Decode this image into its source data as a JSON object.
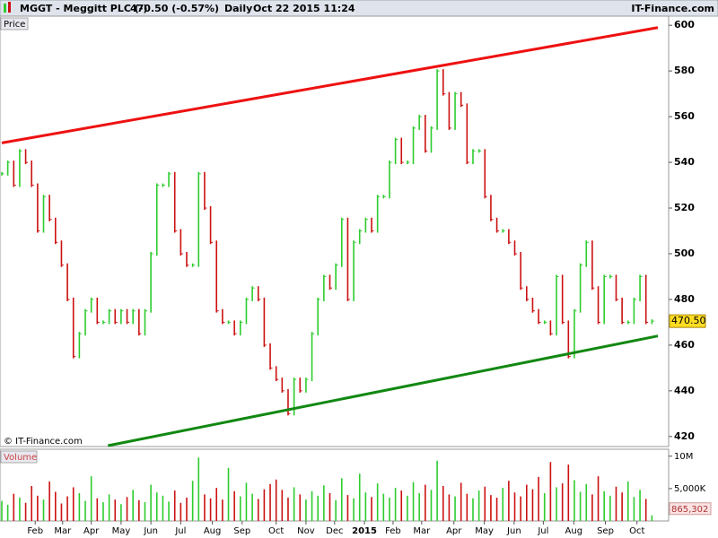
{
  "chart_data": {
    "type": "price-bars",
    "symbol": "MGGT - Meggitt PLC (-)",
    "change": "470.50 (-0.57%)",
    "period": "Daily",
    "timestamp": "Oct 22 2015 11:24",
    "brand": "IT-Finance.com",
    "watermark": "© IT-Finance.com",
    "price_pane_label": "Price",
    "volume_pane_label": "Volume",
    "up_color": "#2ecc2e",
    "down_color": "#cc1111",
    "xlim": [
      0,
      110
    ],
    "xticks": [
      {
        "value": 5.6,
        "label": "Feb"
      },
      {
        "value": 10.2,
        "label": "Mar"
      },
      {
        "value": 15,
        "label": "Apr"
      },
      {
        "value": 20,
        "label": "May"
      },
      {
        "value": 25,
        "label": "Jun"
      },
      {
        "value": 30,
        "label": "Jul"
      },
      {
        "value": 35.3,
        "label": "Aug"
      },
      {
        "value": 40.3,
        "label": "Sep"
      },
      {
        "value": 46,
        "label": "Oct"
      },
      {
        "value": 51,
        "label": "Nov"
      },
      {
        "value": 55.8,
        "label": "Dec"
      },
      {
        "value": 60.8,
        "label": "2015"
      },
      {
        "value": 65.6,
        "label": "Feb"
      },
      {
        "value": 70.4,
        "label": "Mar"
      },
      {
        "value": 75.8,
        "label": "Apr"
      },
      {
        "value": 80.9,
        "label": "May"
      },
      {
        "value": 85.9,
        "label": "Jun"
      },
      {
        "value": 90.8,
        "label": "Jul"
      },
      {
        "value": 95.9,
        "label": "Aug"
      },
      {
        "value": 101.2,
        "label": "Sep"
      },
      {
        "value": 106.5,
        "label": "Oct"
      }
    ],
    "ylim": [
      416,
      604
    ],
    "yticks": [
      420,
      440,
      460,
      480,
      500,
      520,
      540,
      560,
      580,
      600
    ],
    "y2lim": [
      0,
      10800000
    ],
    "y2ticks": [
      {
        "value": 5000000,
        "label": "5,000K"
      },
      {
        "value": 10000000,
        "label": "10M"
      }
    ],
    "last_price": {
      "value": 470.5,
      "label": "470.50"
    },
    "last_volume": {
      "value": 865302,
      "label": "865,302"
    },
    "series": [
      {
        "name": "Price",
        "values": [
          535,
          540,
          530,
          545,
          540,
          530,
          510,
          525,
          515,
          505,
          495,
          480,
          455,
          465,
          475,
          480,
          470,
          470,
          475,
          470,
          475,
          470,
          475,
          465,
          475,
          500,
          530,
          530,
          535,
          510,
          500,
          495,
          495,
          535,
          520,
          505,
          475,
          470,
          470,
          465,
          470,
          480,
          485,
          480,
          460,
          450,
          445,
          440,
          430,
          445,
          440,
          445,
          465,
          480,
          490,
          485,
          495,
          515,
          480,
          505,
          510,
          515,
          510,
          525,
          525,
          540,
          550,
          540,
          540,
          555,
          560,
          545,
          555,
          580,
          570,
          555,
          570,
          565,
          540,
          545,
          545,
          525,
          515,
          510,
          510,
          505,
          500,
          485,
          480,
          475,
          470,
          470,
          465,
          490,
          470,
          455,
          475,
          495,
          505,
          485,
          470,
          490,
          490,
          480,
          470,
          470,
          480,
          490,
          470,
          470.5
        ]
      },
      {
        "name": "Volume",
        "axis": "y2",
        "values": [
          3100000,
          2500000,
          4200000,
          3600000,
          2800000,
          5400000,
          3900000,
          3300000,
          6100000,
          4500000,
          2700000,
          3800000,
          5200000,
          4300000,
          3100000,
          6900000,
          3500000,
          2900000,
          4100000,
          3300000,
          2600000,
          3700000,
          4800000,
          3200000,
          2900000,
          5600000,
          4400000,
          3900000,
          3000000,
          4700000,
          2800000,
          3600000,
          6200000,
          9800000,
          4100000,
          3500000,
          5100000,
          3300000,
          8200000,
          4600000,
          3800000,
          5900000,
          4200000,
          3400000,
          4900000,
          5700000,
          6400000,
          4800000,
          3600000,
          5200000,
          4100000,
          3300000,
          4600000,
          3900000,
          5500000,
          4300000,
          3200000,
          6600000,
          4000000,
          3500000,
          7300000,
          4400000,
          3700000,
          5800000,
          4200000,
          3600000,
          5100000,
          4700000,
          3900000,
          6000000,
          4300000,
          5600000,
          4800000,
          9300000,
          5400000,
          4100000,
          3800000,
          5900000,
          4200000,
          3500000,
          4700000,
          5300000,
          4000000,
          3600000,
          5100000,
          6200000,
          4400000,
          3800000,
          5600000,
          4900000,
          6800000,
          4300000,
          9100000,
          5200000,
          5800000,
          8700000,
          6300000,
          4500000,
          5700000,
          4100000,
          6900000,
          4600000,
          3900000,
          5300000,
          4400000,
          6100000,
          3700000,
          4800000,
          3400000,
          865302
        ]
      }
    ],
    "trendlines": [
      {
        "color": "#ee1111",
        "start": [
          0,
          548.5
        ],
        "end": [
          110,
          599
        ]
      },
      {
        "color": "#118811",
        "start": [
          17.8,
          416
        ],
        "end": [
          110,
          464
        ]
      }
    ]
  }
}
